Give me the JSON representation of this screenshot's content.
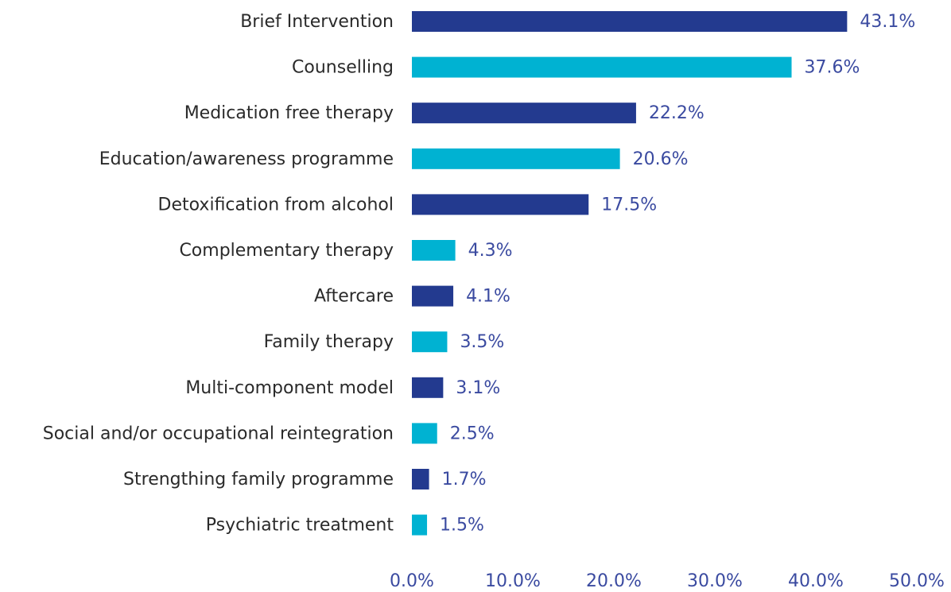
{
  "chart_data": {
    "type": "bar",
    "orientation": "horizontal",
    "categories": [
      "Brief Intervention",
      "Counselling",
      "Medication free therapy",
      "Education/awareness programme",
      "Detoxification from alcohol",
      "Complementary therapy",
      "Aftercare",
      "Family therapy",
      "Multi-component model",
      "Social and/or occupational reintegration",
      "Strengthing family programme",
      "Psychiatric treatment"
    ],
    "values": [
      43.1,
      37.6,
      22.2,
      20.6,
      17.5,
      4.3,
      4.1,
      3.5,
      3.1,
      2.5,
      1.7,
      1.5
    ],
    "value_labels": [
      "43.1%",
      "37.6%",
      "22.2%",
      "20.6%",
      "17.5%",
      "4.3%",
      "4.1%",
      "3.5%",
      "3.1%",
      "2.5%",
      "1.7%",
      "1.5%"
    ],
    "colors": [
      "#233a8f",
      "#00b2d2",
      "#233a8f",
      "#00b2d2",
      "#233a8f",
      "#00b2d2",
      "#233a8f",
      "#00b2d2",
      "#233a8f",
      "#00b2d2",
      "#233a8f",
      "#00b2d2"
    ],
    "xlim": [
      0,
      50
    ],
    "xticks": [
      {
        "value": 0,
        "label": "0.0%"
      },
      {
        "value": 10,
        "label": "10.0%"
      },
      {
        "value": 20,
        "label": "20.0%"
      },
      {
        "value": 30,
        "label": "30.0%"
      },
      {
        "value": 40,
        "label": "40.0%"
      },
      {
        "value": 50,
        "label": "50.0%"
      }
    ],
    "grid": false
  }
}
